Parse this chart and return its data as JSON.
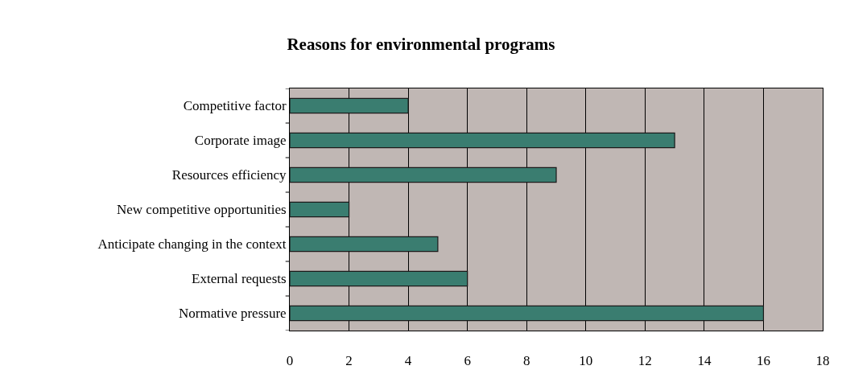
{
  "chart_data": {
    "type": "bar",
    "title": "Reasons for environmental programs",
    "orientation": "horizontal",
    "categories": [
      "Competitive factor",
      "Corporate image",
      "Resources efficiency",
      "New competitive opportunities",
      "Anticipate changing in the context",
      "External requests",
      "Normative pressure"
    ],
    "values": [
      4,
      13,
      9,
      2,
      5,
      6,
      16
    ],
    "color": "#3a7d70",
    "xlim": [
      0,
      18
    ],
    "xticks": [
      0,
      2,
      4,
      6,
      8,
      10,
      12,
      14,
      16,
      18
    ],
    "grid": "x"
  }
}
